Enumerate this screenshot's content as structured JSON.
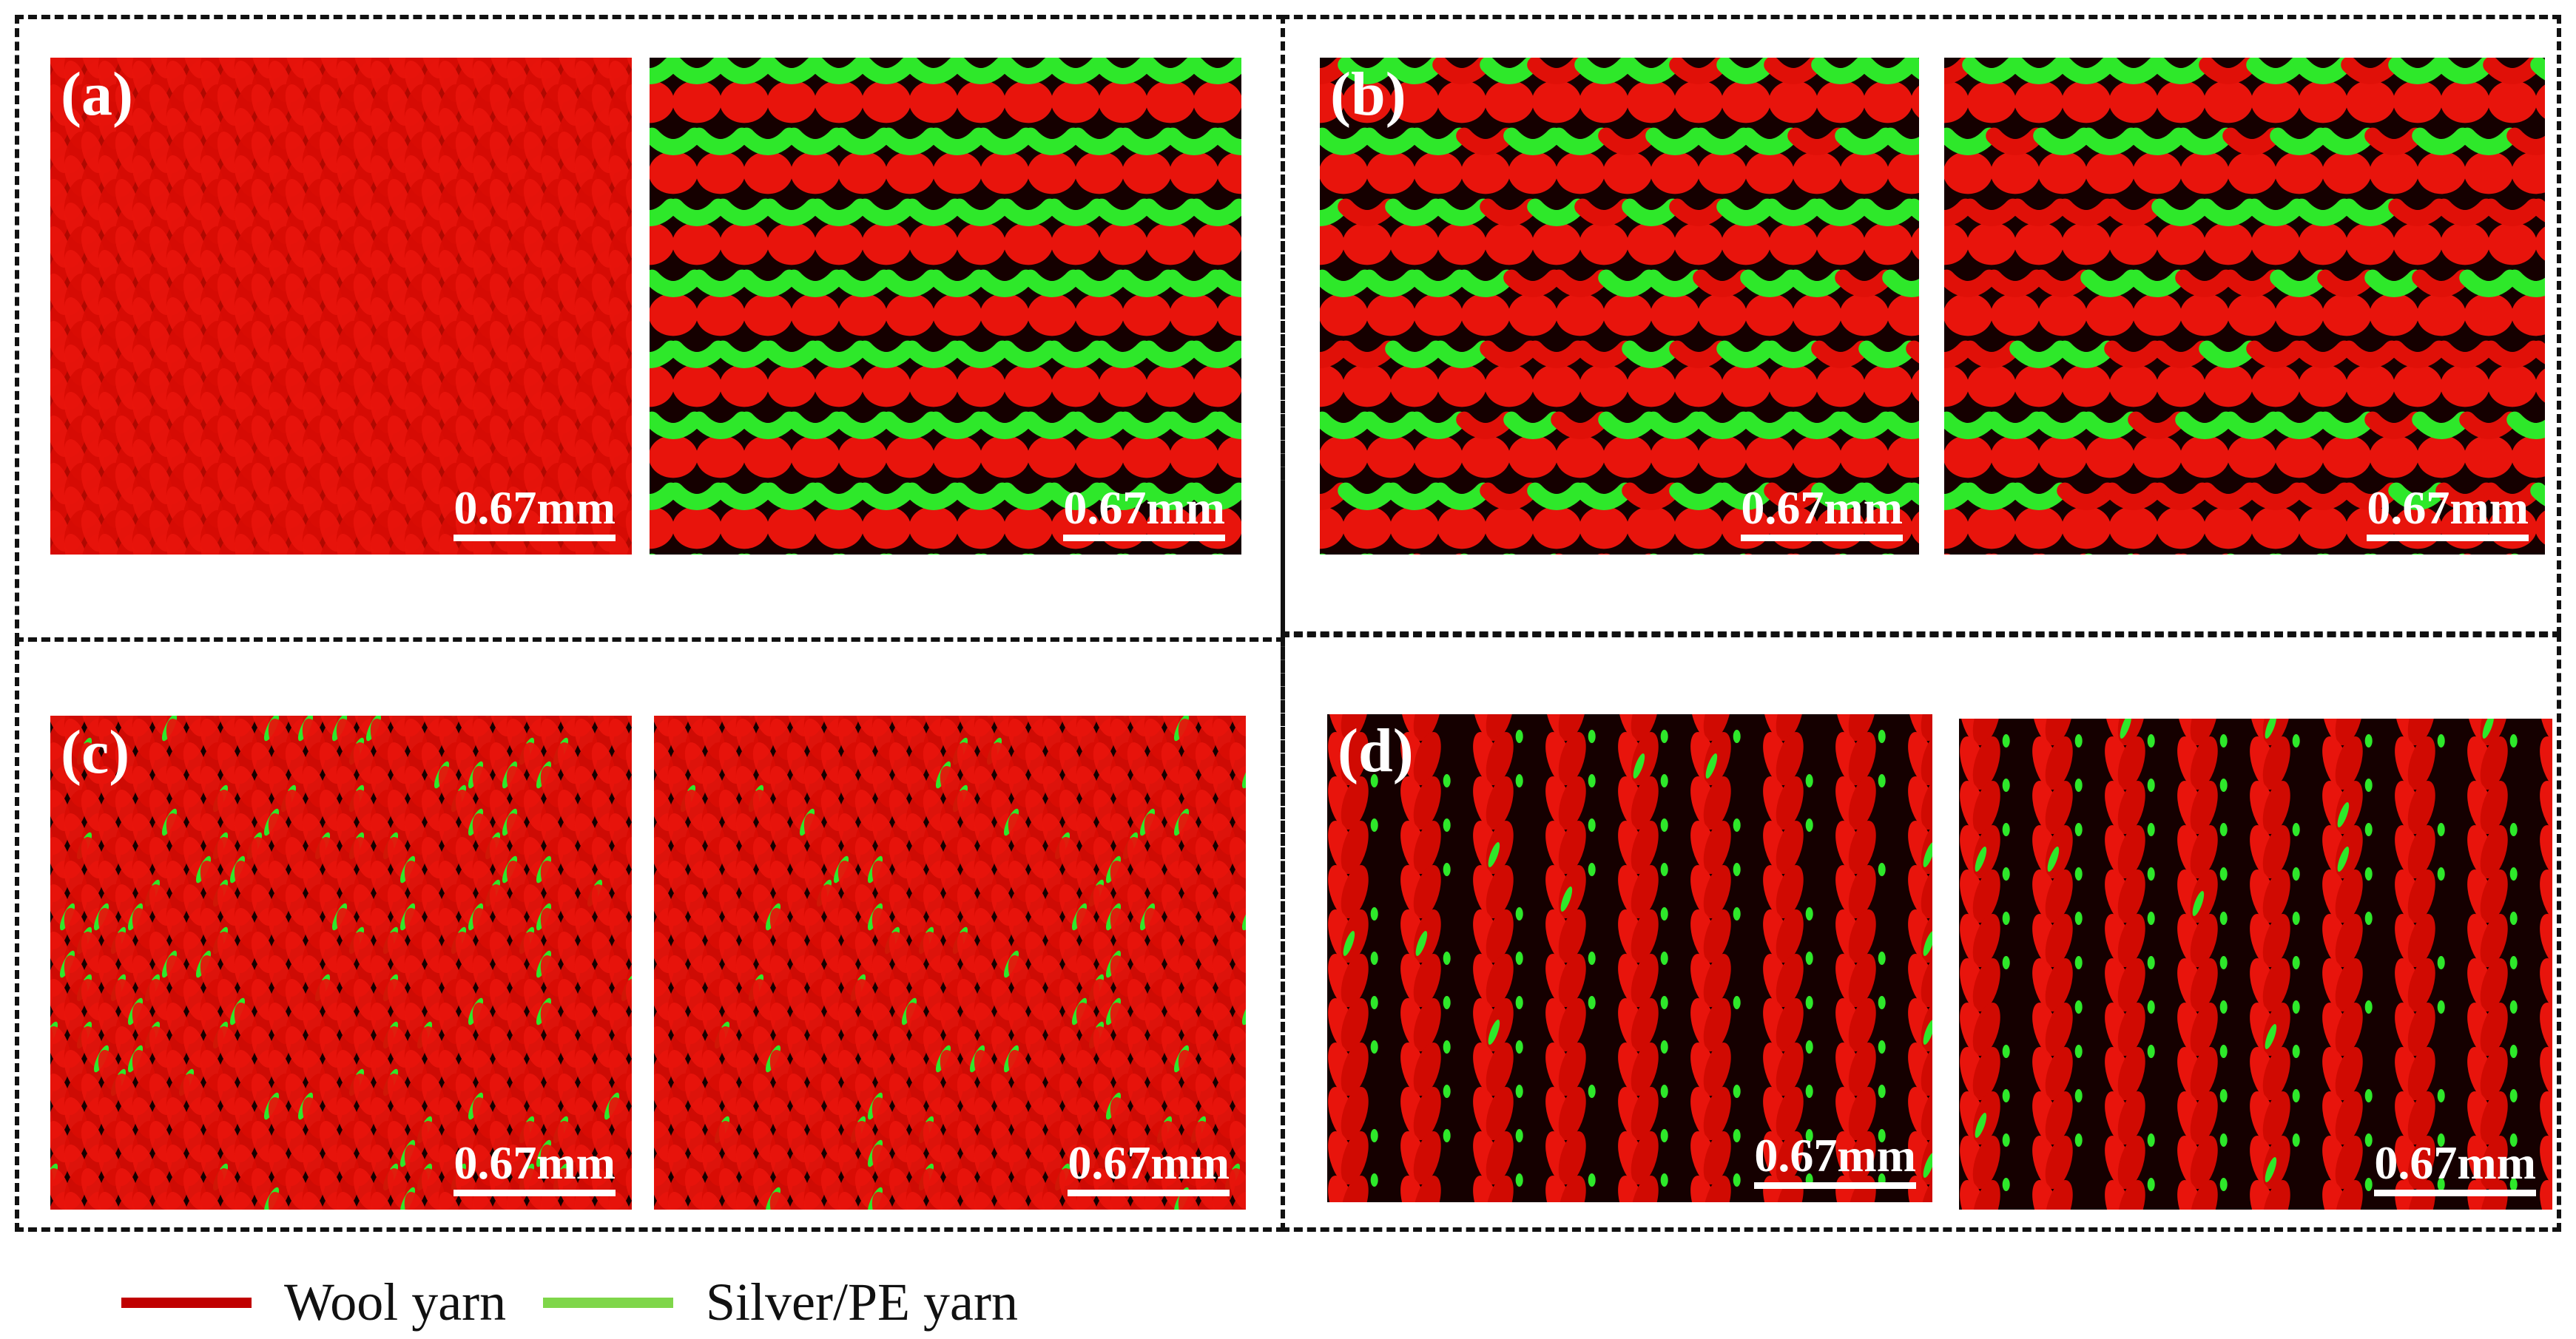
{
  "panels": [
    {
      "label": "(a)",
      "pattern": "plain-jersey-front",
      "scale": "0.67mm"
    },
    {
      "label": "",
      "pattern": "plain-jersey-back",
      "scale": "0.67mm"
    },
    {
      "label": "(b)",
      "pattern": "purl-1",
      "scale": "0.67mm"
    },
    {
      "label": "",
      "pattern": "purl-2",
      "scale": "0.67mm"
    },
    {
      "label": "(c)",
      "pattern": "plated-1",
      "scale": "0.67mm"
    },
    {
      "label": "",
      "pattern": "plated-2",
      "scale": "0.67mm"
    },
    {
      "label": "(d)",
      "pattern": "rib-1",
      "scale": "0.67mm"
    },
    {
      "label": "",
      "pattern": "rib-2",
      "scale": "0.67mm"
    }
  ],
  "legend": [
    {
      "label": "Wool yarn",
      "color": "#c00000"
    },
    {
      "label": "Silver/PE yarn",
      "color": "#7fd64a"
    }
  ],
  "colors": {
    "wool": "#e8140c",
    "wool_dark": "#7a0000",
    "silver_pe": "#2ee82a",
    "background": "#150000"
  }
}
